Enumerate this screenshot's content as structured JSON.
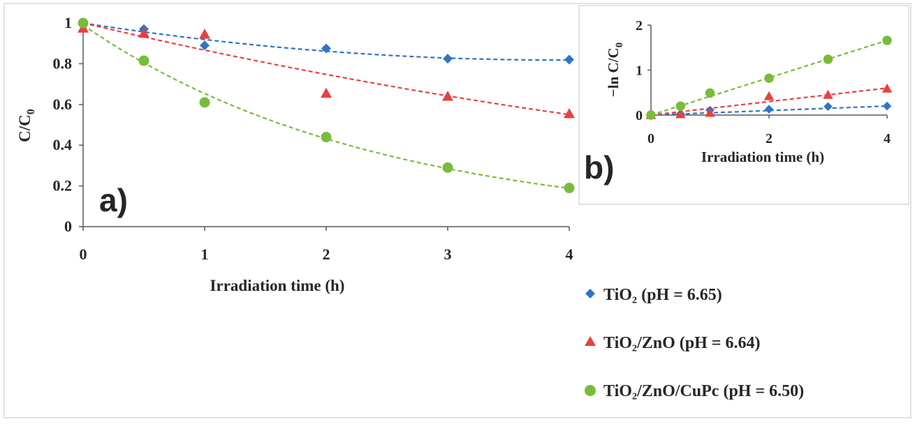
{
  "colors": {
    "tio2": "#2e75c5",
    "tio2_zno": "#e8403e",
    "tio2_zno_cupc": "#79bc3c",
    "axis": "#595959"
  },
  "legend": {
    "items": [
      {
        "label": "TiO₂ (pH = 6.65)",
        "marker": "diamond",
        "color": "#2e75c5"
      },
      {
        "label": "TiO₂/ZnO (pH = 6.64)",
        "marker": "triangle",
        "color": "#e8403e"
      },
      {
        "label": "TiO₂/ZnO/CuPc (pH = 6.50)",
        "marker": "circle",
        "color": "#79bc3c"
      }
    ]
  },
  "chart_data": [
    {
      "panel": "a)",
      "type": "scatter",
      "title": "",
      "xlabel": "Irradiation time (h)",
      "ylabel_main": "C/C",
      "ylabel_sub": "0",
      "xlim": [
        0,
        4
      ],
      "ylim": [
        0,
        1
      ],
      "xticks": [
        0,
        1,
        2,
        3,
        4
      ],
      "xtick_labels": [
        "0",
        "1",
        "2",
        "3",
        "4"
      ],
      "yticks": [
        0,
        0.2,
        0.4,
        0.6,
        0.8,
        1
      ],
      "ytick_labels": [
        "0",
        "0.2",
        "0.4",
        "0.6",
        "0.8",
        "1"
      ],
      "grid": false,
      "series": [
        {
          "name": "TiO₂ (pH = 6.65)",
          "marker": "diamond",
          "color": "#2e75c5",
          "x": [
            0,
            0.5,
            1,
            2,
            3,
            4
          ],
          "y": [
            1.0,
            0.97,
            0.89,
            0.875,
            0.825,
            0.82
          ],
          "trend": {
            "type": "poly2",
            "coef": [
              1.0,
              -0.093,
              0.0119
            ]
          }
        },
        {
          "name": "TiO₂/ZnO (pH = 6.64)",
          "marker": "triangle",
          "color": "#e8403e",
          "x": [
            0,
            0.5,
            1,
            2,
            3,
            4
          ],
          "y": [
            0.975,
            0.95,
            0.945,
            0.655,
            0.64,
            0.555
          ],
          "trend": {
            "type": "poly2",
            "coef": [
              1.0,
              -0.14,
              0.0069
            ]
          }
        },
        {
          "name": "TiO₂/ZnO/CuPc (pH = 6.50)",
          "marker": "circle",
          "color": "#79bc3c",
          "x": [
            0,
            0.5,
            1,
            2,
            3,
            4
          ],
          "y": [
            1.0,
            0.815,
            0.61,
            0.44,
            0.29,
            0.19
          ],
          "trend": {
            "type": "exp",
            "a": 0.99,
            "k": 0.415
          }
        }
      ]
    },
    {
      "panel": "b)",
      "type": "scatter",
      "title": "",
      "xlabel": "Irradiation time (h)",
      "ylabel_main": "−ln C/C",
      "ylabel_sub": "0",
      "xlim": [
        0,
        4
      ],
      "ylim": [
        0,
        2
      ],
      "xticks": [
        0,
        2,
        4
      ],
      "xtick_labels": [
        "0",
        "2",
        "4"
      ],
      "yticks": [
        0,
        1,
        2
      ],
      "ytick_labels": [
        "0",
        "1",
        "2"
      ],
      "grid": false,
      "series": [
        {
          "name": "TiO₂ (pH = 6.65)",
          "marker": "diamond",
          "color": "#2e75c5",
          "x": [
            0,
            0.5,
            1,
            2,
            3,
            4
          ],
          "y": [
            0.0,
            0.03,
            0.11,
            0.13,
            0.19,
            0.2
          ],
          "trend": {
            "type": "linear",
            "slope": 0.05,
            "intercept": 0
          }
        },
        {
          "name": "TiO₂/ZnO (pH = 6.64)",
          "marker": "triangle",
          "color": "#e8403e",
          "x": [
            0,
            0.5,
            1,
            2,
            3,
            4
          ],
          "y": [
            0.0,
            0.02,
            0.05,
            0.42,
            0.45,
            0.59
          ],
          "trend": {
            "type": "linear",
            "slope": 0.15,
            "intercept": 0
          }
        },
        {
          "name": "TiO₂/ZnO/CuPc (pH = 6.50)",
          "marker": "circle",
          "color": "#79bc3c",
          "x": [
            0,
            0.5,
            1,
            2,
            3,
            4
          ],
          "y": [
            0.0,
            0.2,
            0.49,
            0.82,
            1.24,
            1.66
          ],
          "trend": {
            "type": "linear",
            "slope": 0.415,
            "intercept": 0
          }
        }
      ]
    }
  ]
}
